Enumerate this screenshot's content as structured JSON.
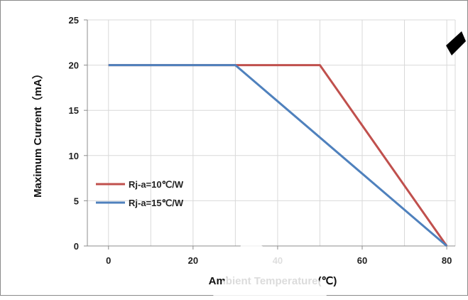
{
  "chart_data": {
    "type": "line",
    "xlabel": "Ambient Temperature(℃)",
    "ylabel": "Maximum Current（mA）",
    "xlim": [
      -5,
      82
    ],
    "ylim": [
      0,
      25
    ],
    "x_ticks": [
      "0",
      "20",
      "40",
      "60",
      "80"
    ],
    "x_tick_values": [
      0,
      20,
      40,
      60,
      80
    ],
    "y_ticks": [
      "0",
      "5",
      "10",
      "15",
      "20",
      "25"
    ],
    "y_tick_values": [
      0,
      5,
      10,
      15,
      20,
      25
    ],
    "grid": true,
    "legend": "left",
    "series": [
      {
        "name": "Rj-a=10℃/W",
        "color": "#c0504d",
        "x": [
          0,
          50,
          80
        ],
        "y": [
          20,
          20,
          0
        ]
      },
      {
        "name": "Rj-a=15℃/W",
        "color": "#4f81bd",
        "x": [
          0,
          30,
          80
        ],
        "y": [
          20,
          20,
          0
        ]
      }
    ]
  }
}
